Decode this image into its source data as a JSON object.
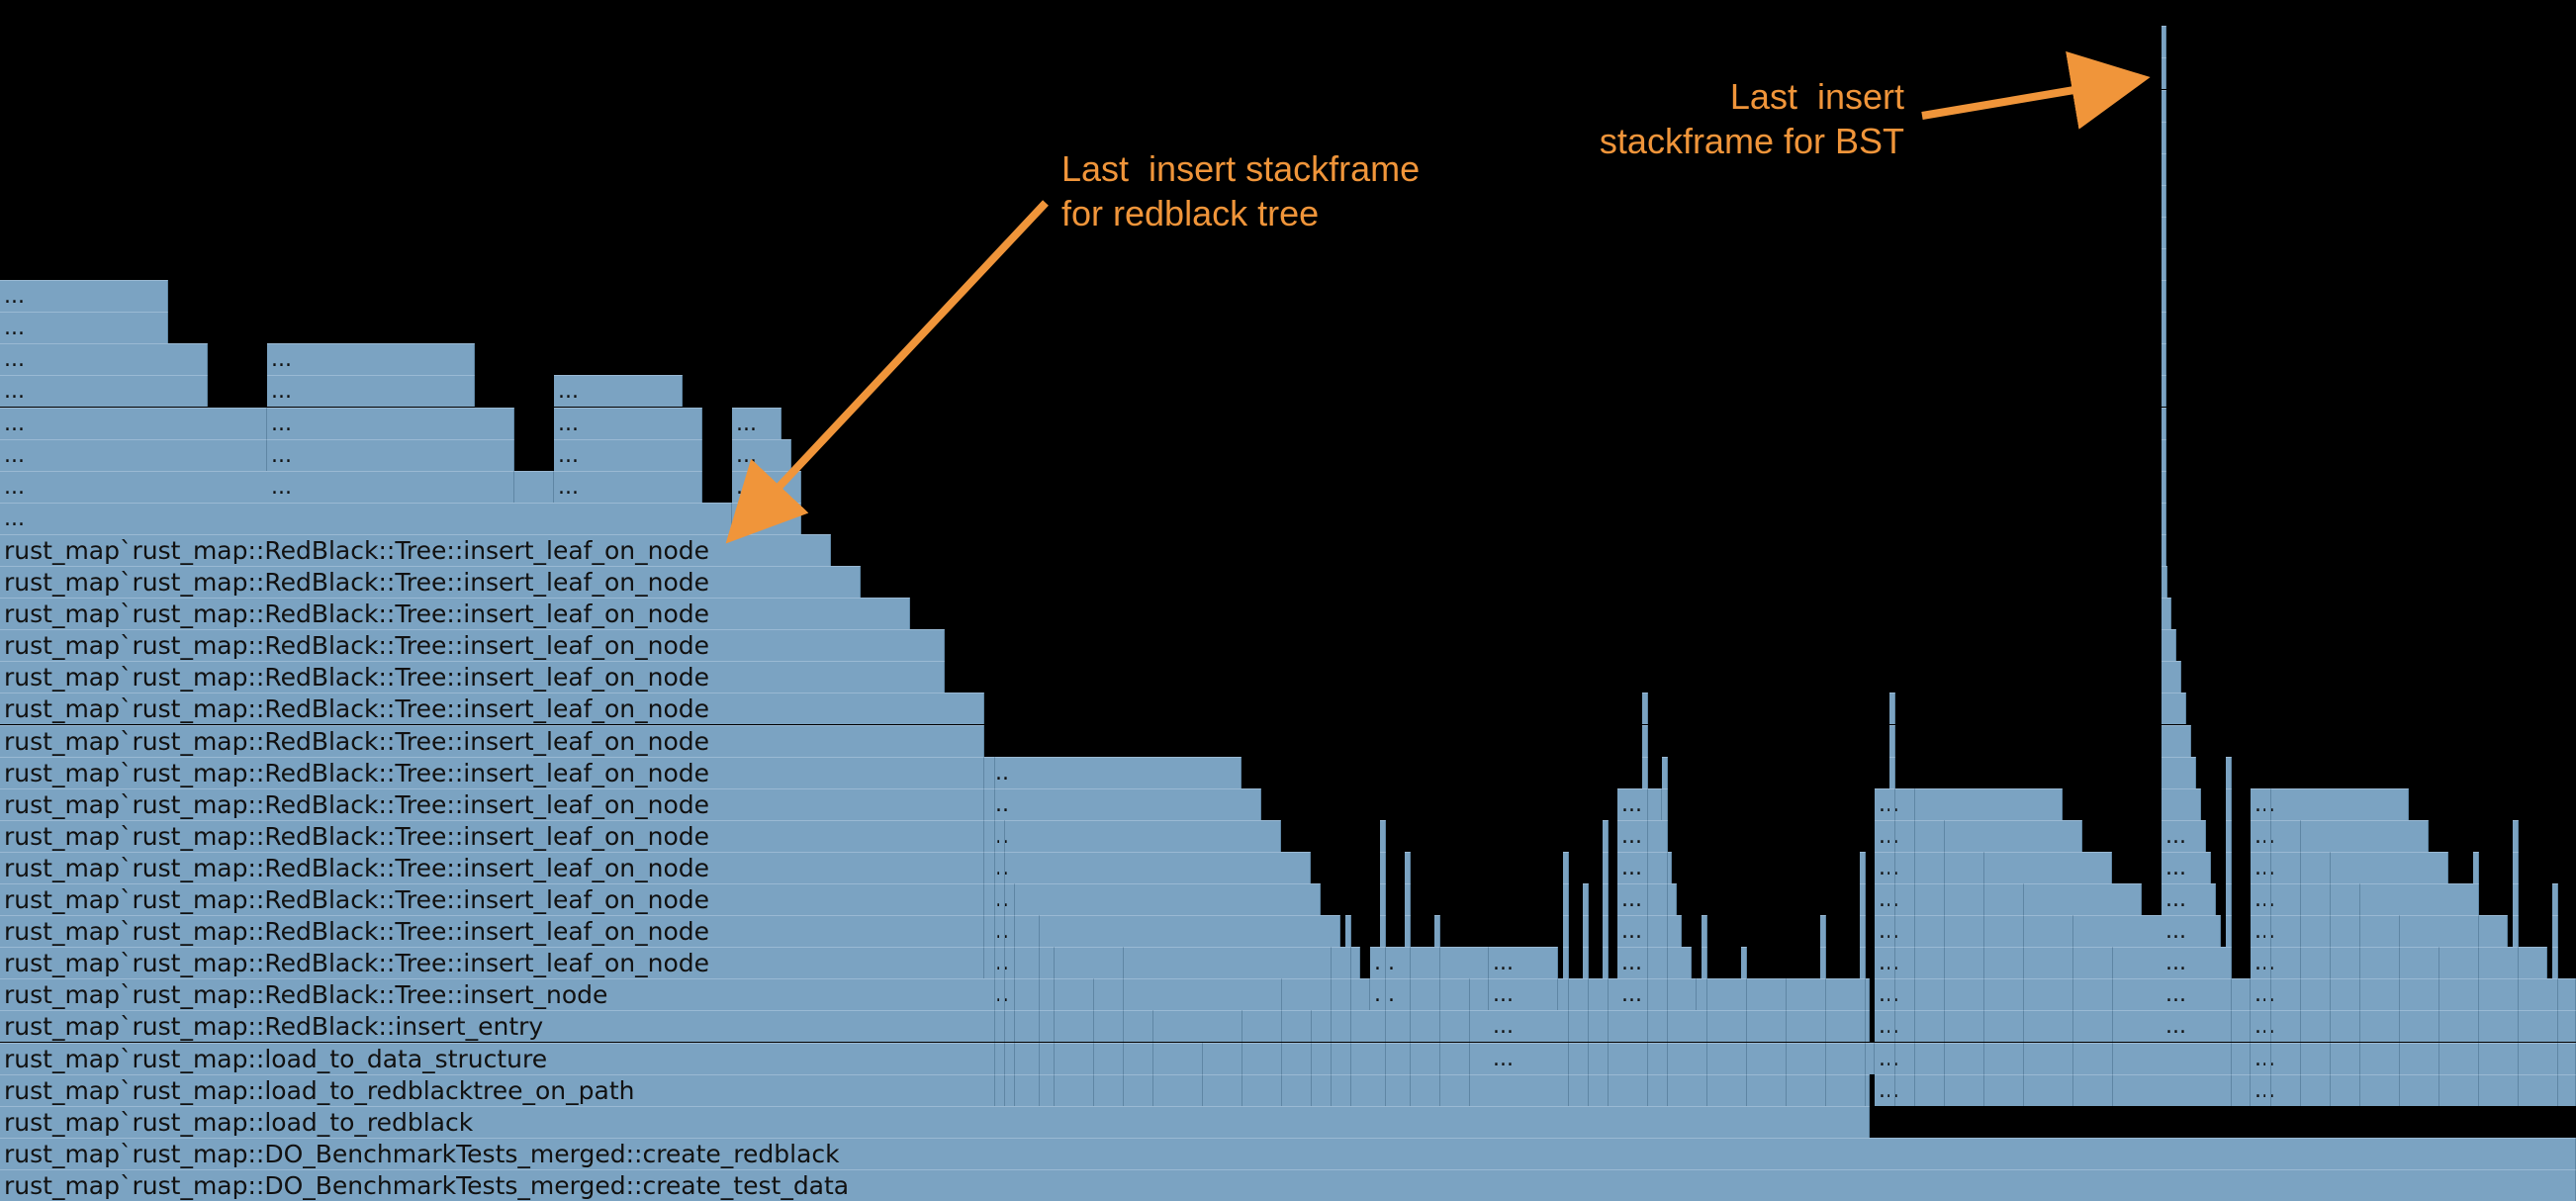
{
  "stack_labels": [
    "rust_map`rust_map::DO_BenchmarkTests_merged::create_test_data",
    "rust_map`rust_map::DO_BenchmarkTests_merged::create_redblack",
    "rust_map`rust_map::load_to_redblack",
    "rust_map`rust_map::load_to_redblacktree_on_path",
    "rust_map`rust_map::load_to_data_structure",
    "rust_map`rust_map::RedBlack::insert_entry",
    "rust_map`rust_map::RedBlack::Tree::insert_node",
    "rust_map`rust_map::RedBlack::Tree::insert_leaf_on_node",
    "rust_map`rust_map::RedBlack::Tree::insert_leaf_on_node",
    "rust_map`rust_map::RedBlack::Tree::insert_leaf_on_node",
    "rust_map`rust_map::RedBlack::Tree::insert_leaf_on_node",
    "rust_map`rust_map::RedBlack::Tree::insert_leaf_on_node",
    "rust_map`rust_map::RedBlack::Tree::insert_leaf_on_node",
    "rust_map`rust_map::RedBlack::Tree::insert_leaf_on_node",
    "rust_map`rust_map::RedBlack::Tree::insert_leaf_on_node",
    "rust_map`rust_map::RedBlack::Tree::insert_leaf_on_node",
    "rust_map`rust_map::RedBlack::Tree::insert_leaf_on_node",
    "rust_map`rust_map::RedBlack::Tree::insert_leaf_on_node",
    "rust_map`rust_map::RedBlack::Tree::insert_leaf_on_node",
    "rust_map`rust_map::RedBlack::Tree::insert_leaf_on_node",
    "rust_map`rust_map::RedBlack::Tree::insert_leaf_on_node"
  ],
  "truncated_label": "...",
  "annotations": {
    "bst": "Last  insert\nstackframe for BST",
    "redblack": "Last  insert stackframe\nfor redblack tree"
  },
  "colors": {
    "background": "#000000",
    "frame": "#7ba3c2",
    "annotation": "#f0953a"
  }
}
